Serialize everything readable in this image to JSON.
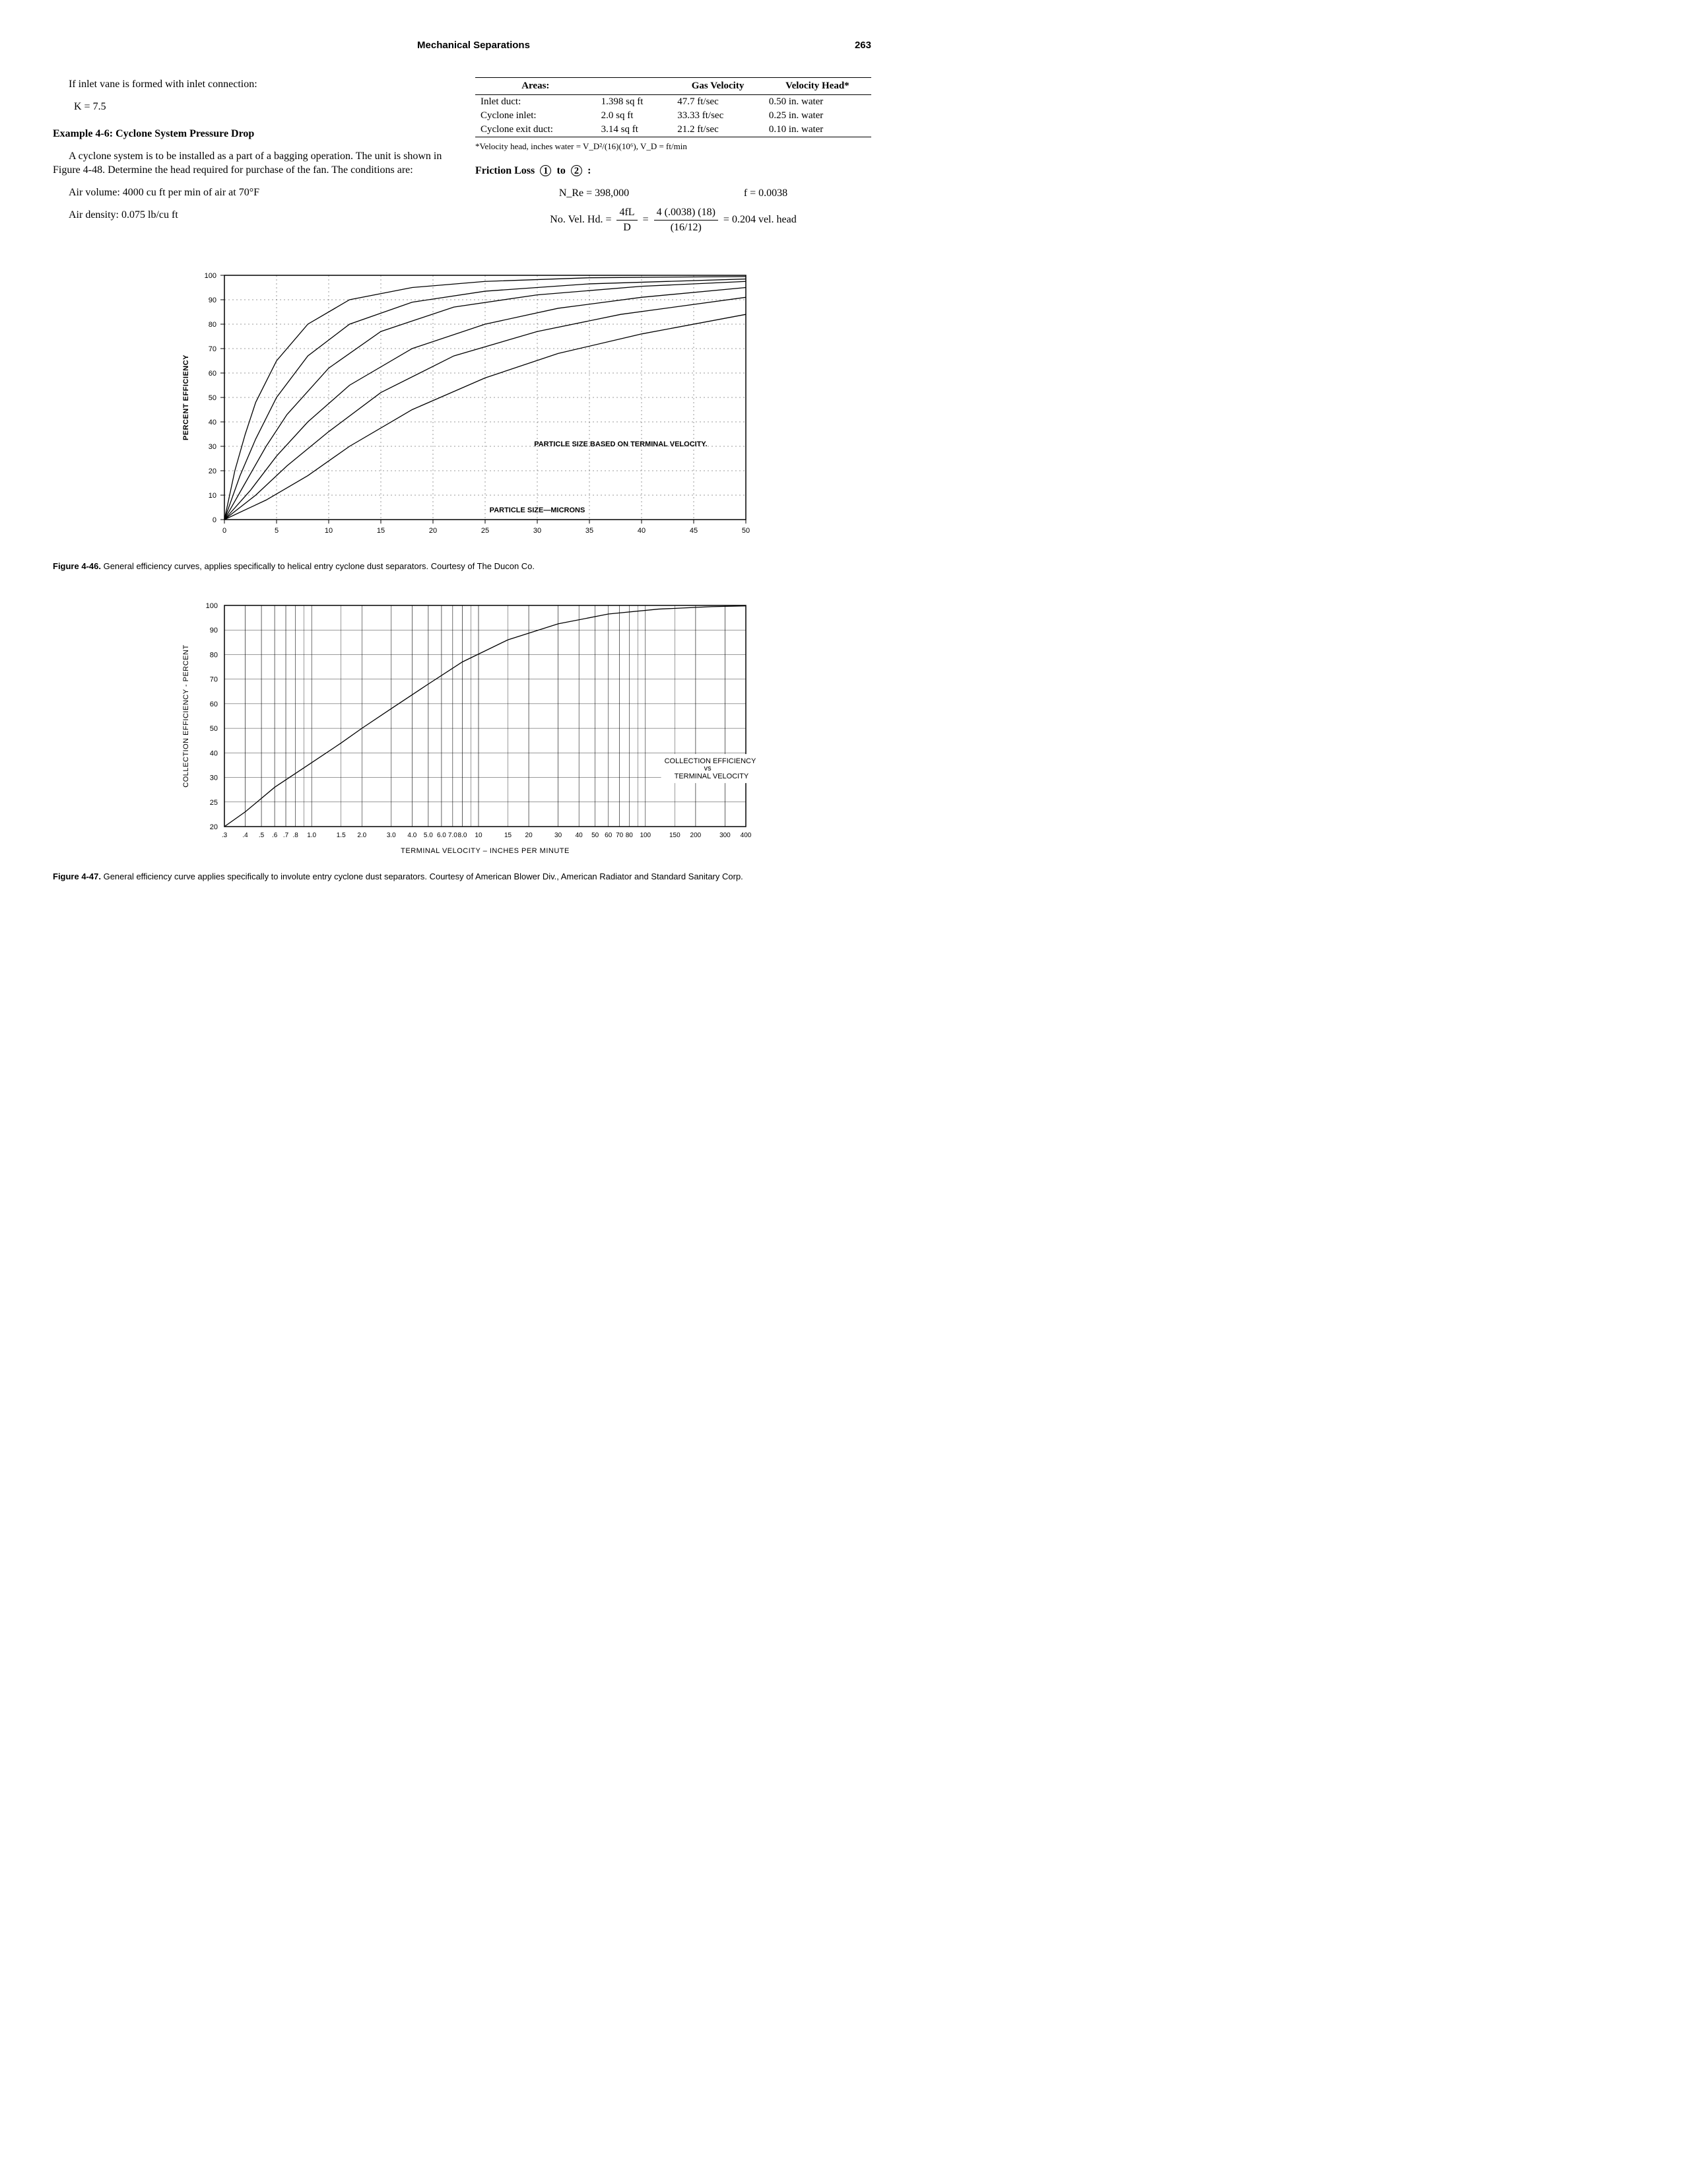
{
  "header": {
    "title": "Mechanical Separations",
    "page": "263"
  },
  "left": {
    "p1": "If inlet vane is formed with inlet connection:",
    "k_eq": "K = 7.5",
    "heading": "Example 4-6: Cyclone System Pressure Drop",
    "p2": "A cyclone system is to be installed as a part of a bagging operation. The unit is shown in Figure 4-48. Determine the head required for purchase of the fan. The conditions are:",
    "p3a": "Air volume: 4000 cu ft per min of air at 70°F",
    "p3b": "Air density: 0.075 lb/cu ft"
  },
  "areas_table": {
    "headers": [
      "Areas:",
      "",
      "Gas Velocity",
      "Velocity Head*"
    ],
    "rows": [
      [
        "Inlet duct:",
        "1.398 sq ft",
        "47.7 ft/sec",
        "0.50 in. water"
      ],
      [
        "Cyclone inlet:",
        "2.0 sq ft",
        "33.33 ft/sec",
        "0.25 in. water"
      ],
      [
        "Cyclone exit duct:",
        "3.14 sq ft",
        "21.2 ft/sec",
        "0.10 in. water"
      ]
    ],
    "footnote": "*Velocity head, inches water = V_D²/(16)(10⁶), V_D = ft/min"
  },
  "friction": {
    "title_pre": "Friction Loss",
    "to": "to",
    "colon": ":",
    "nre": "N_Re = 398,000",
    "f": "f = 0.0038",
    "eq_lhs": "No. Vel. Hd.  =",
    "eq_num1": "4fL",
    "eq_den1": "D",
    "eq_num2": "4 (.0038) (18)",
    "eq_den2": "(16/12)",
    "eq_rhs": "= 0.204 vel. head"
  },
  "fig46": {
    "caption_bold": "Figure 4-46.",
    "caption_rest": " General efficiency curves, applies specifically to helical entry cyclone dust separators. Courtesy of The Ducon Co.",
    "ylabel": "PERCENT EFFICIENCY",
    "xlabel": "PARTICLE SIZE—MICRONS",
    "note": "PARTICLE SIZE BASED ON TERMINAL VELOCITY.",
    "x_ticks": [
      0,
      5,
      10,
      15,
      20,
      25,
      30,
      35,
      40,
      45,
      50
    ],
    "y_ticks": [
      0,
      10,
      20,
      30,
      40,
      50,
      60,
      70,
      80,
      90,
      100
    ],
    "xlim": [
      0,
      50
    ],
    "ylim": [
      0,
      100
    ],
    "grid_color": "#000000",
    "background_color": "#ffffff",
    "curves": [
      {
        "points": [
          [
            0,
            0
          ],
          [
            1,
            20
          ],
          [
            2,
            35
          ],
          [
            3,
            48
          ],
          [
            5,
            65
          ],
          [
            8,
            80
          ],
          [
            12,
            90
          ],
          [
            18,
            95
          ],
          [
            25,
            97.5
          ],
          [
            35,
            99
          ],
          [
            50,
            99.5
          ]
        ]
      },
      {
        "points": [
          [
            0,
            0
          ],
          [
            1.5,
            18
          ],
          [
            3,
            33
          ],
          [
            5,
            50
          ],
          [
            8,
            67
          ],
          [
            12,
            80
          ],
          [
            18,
            89
          ],
          [
            25,
            93.5
          ],
          [
            35,
            96.5
          ],
          [
            50,
            98.5
          ]
        ]
      },
      {
        "points": [
          [
            0,
            0
          ],
          [
            2,
            15
          ],
          [
            4,
            30
          ],
          [
            6,
            43
          ],
          [
            10,
            62
          ],
          [
            15,
            77
          ],
          [
            22,
            87
          ],
          [
            30,
            92
          ],
          [
            40,
            95.5
          ],
          [
            50,
            97.5
          ]
        ]
      },
      {
        "points": [
          [
            0,
            0
          ],
          [
            2.5,
            12
          ],
          [
            5,
            26
          ],
          [
            8,
            40
          ],
          [
            12,
            55
          ],
          [
            18,
            70
          ],
          [
            25,
            80
          ],
          [
            32,
            86.5
          ],
          [
            40,
            91
          ],
          [
            50,
            95
          ]
        ]
      },
      {
        "points": [
          [
            0,
            0
          ],
          [
            3,
            10
          ],
          [
            6,
            22
          ],
          [
            10,
            36
          ],
          [
            15,
            52
          ],
          [
            22,
            67
          ],
          [
            30,
            77
          ],
          [
            38,
            84
          ],
          [
            50,
            91
          ]
        ]
      },
      {
        "points": [
          [
            0,
            0
          ],
          [
            4,
            8
          ],
          [
            8,
            18
          ],
          [
            12,
            30
          ],
          [
            18,
            45
          ],
          [
            25,
            58
          ],
          [
            32,
            68
          ],
          [
            40,
            76
          ],
          [
            50,
            84
          ]
        ]
      }
    ]
  },
  "fig47": {
    "caption_bold": "Figure 4-47.",
    "caption_rest": " General efficiency curve applies specifically to involute entry cyclone dust separators. Courtesy of American Blower Div., American Radiator and Standard Sanitary Corp.",
    "ylabel": "COLLECTION EFFICIENCY - PERCENT",
    "xlabel": "TERMINAL   VELOCITY  –   INCHES   PER   MINUTE",
    "legend_l1": "COLLECTION EFFICIENCY",
    "legend_l2": "vs",
    "legend_l3": "TERMINAL VELOCITY",
    "y_ticks": [
      20,
      25,
      30,
      40,
      50,
      60,
      70,
      80,
      90,
      100
    ],
    "ylim": [
      20,
      100
    ],
    "x_ticks_labels": [
      ".3",
      ".4",
      ".5",
      ".6",
      ".7",
      ".8",
      "1.0",
      "1.5",
      "2.0",
      "3.0",
      "4.0",
      "5.0",
      "6.0",
      "7.0",
      "8.0",
      "10",
      "15",
      "20",
      "30",
      "40",
      "50",
      "60",
      "70",
      "80",
      "100",
      "150",
      "200",
      "300",
      "400"
    ],
    "x_ticks_vals": [
      0.3,
      0.4,
      0.5,
      0.6,
      0.7,
      0.8,
      1.0,
      1.5,
      2.0,
      3.0,
      4.0,
      5.0,
      6.0,
      7.0,
      8.0,
      10,
      15,
      20,
      30,
      40,
      50,
      60,
      70,
      80,
      100,
      150,
      200,
      300,
      400
    ],
    "xlim": [
      0.3,
      400
    ],
    "grid_color": "#000000",
    "background_color": "#ffffff",
    "curve": {
      "points": [
        [
          0.3,
          20
        ],
        [
          0.4,
          23
        ],
        [
          0.6,
          28
        ],
        [
          1.0,
          36
        ],
        [
          1.5,
          44
        ],
        [
          2.0,
          50
        ],
        [
          3.0,
          58
        ],
        [
          5.0,
          68
        ],
        [
          8.0,
          77
        ],
        [
          15,
          86
        ],
        [
          30,
          92.5
        ],
        [
          60,
          96.5
        ],
        [
          120,
          98.5
        ],
        [
          250,
          99.5
        ],
        [
          400,
          99.8
        ]
      ]
    }
  }
}
